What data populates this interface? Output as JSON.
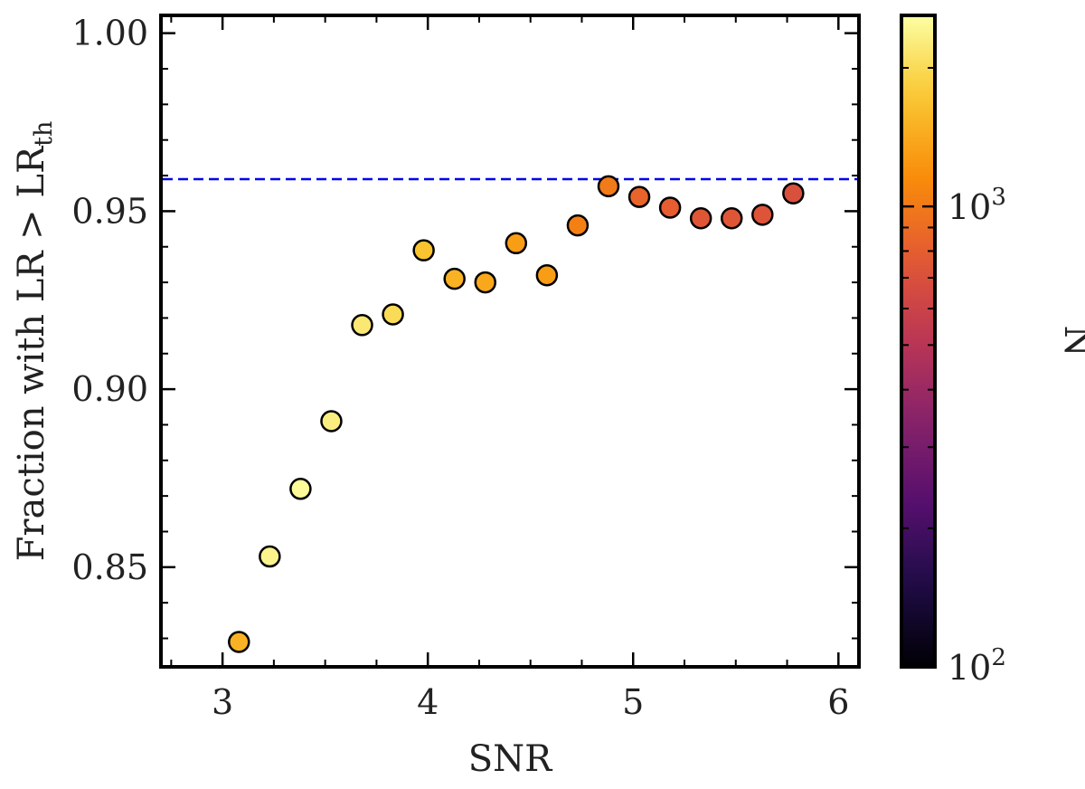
{
  "chart_data": {
    "type": "scatter",
    "xlabel": "SNR",
    "ylabel": "Fraction with LR > LR",
    "ylabel_subscript": "th",
    "xlim": [
      2.7,
      6.1
    ],
    "ylim": [
      0.822,
      1.005
    ],
    "xticks": [
      3,
      4,
      5,
      6
    ],
    "xtick_labels": [
      "3",
      "4",
      "5",
      "6"
    ],
    "yticks": [
      0.85,
      0.9,
      0.95,
      1.0
    ],
    "ytick_labels": [
      "0.85",
      "0.90",
      "0.95",
      "1.00"
    ],
    "reference_line": {
      "y": 0.959,
      "style": "dashed",
      "color": "#0000ee"
    },
    "points": [
      {
        "x": 3.08,
        "y": 0.829,
        "n": 1500
      },
      {
        "x": 3.23,
        "y": 0.853,
        "n": 2400
      },
      {
        "x": 3.38,
        "y": 0.872,
        "n": 2500
      },
      {
        "x": 3.53,
        "y": 0.891,
        "n": 2300
      },
      {
        "x": 3.68,
        "y": 0.918,
        "n": 2200
      },
      {
        "x": 3.83,
        "y": 0.921,
        "n": 2000
      },
      {
        "x": 3.98,
        "y": 0.939,
        "n": 1700
      },
      {
        "x": 4.13,
        "y": 0.931,
        "n": 1500
      },
      {
        "x": 4.28,
        "y": 0.93,
        "n": 1400
      },
      {
        "x": 4.43,
        "y": 0.941,
        "n": 1300
      },
      {
        "x": 4.58,
        "y": 0.932,
        "n": 1300
      },
      {
        "x": 4.73,
        "y": 0.946,
        "n": 1050
      },
      {
        "x": 4.88,
        "y": 0.957,
        "n": 1000
      },
      {
        "x": 5.03,
        "y": 0.954,
        "n": 850
      },
      {
        "x": 5.18,
        "y": 0.951,
        "n": 800
      },
      {
        "x": 5.33,
        "y": 0.948,
        "n": 750
      },
      {
        "x": 5.48,
        "y": 0.948,
        "n": 750
      },
      {
        "x": 5.63,
        "y": 0.949,
        "n": 730
      },
      {
        "x": 5.78,
        "y": 0.955,
        "n": 700
      }
    ],
    "colorbar": {
      "label": "N",
      "scale": "log",
      "range": [
        100,
        2600
      ],
      "colormap": "inferno",
      "tick_values": [
        100,
        1000
      ],
      "tick_base": "10",
      "tick_exponents": [
        "2",
        "3"
      ]
    }
  }
}
